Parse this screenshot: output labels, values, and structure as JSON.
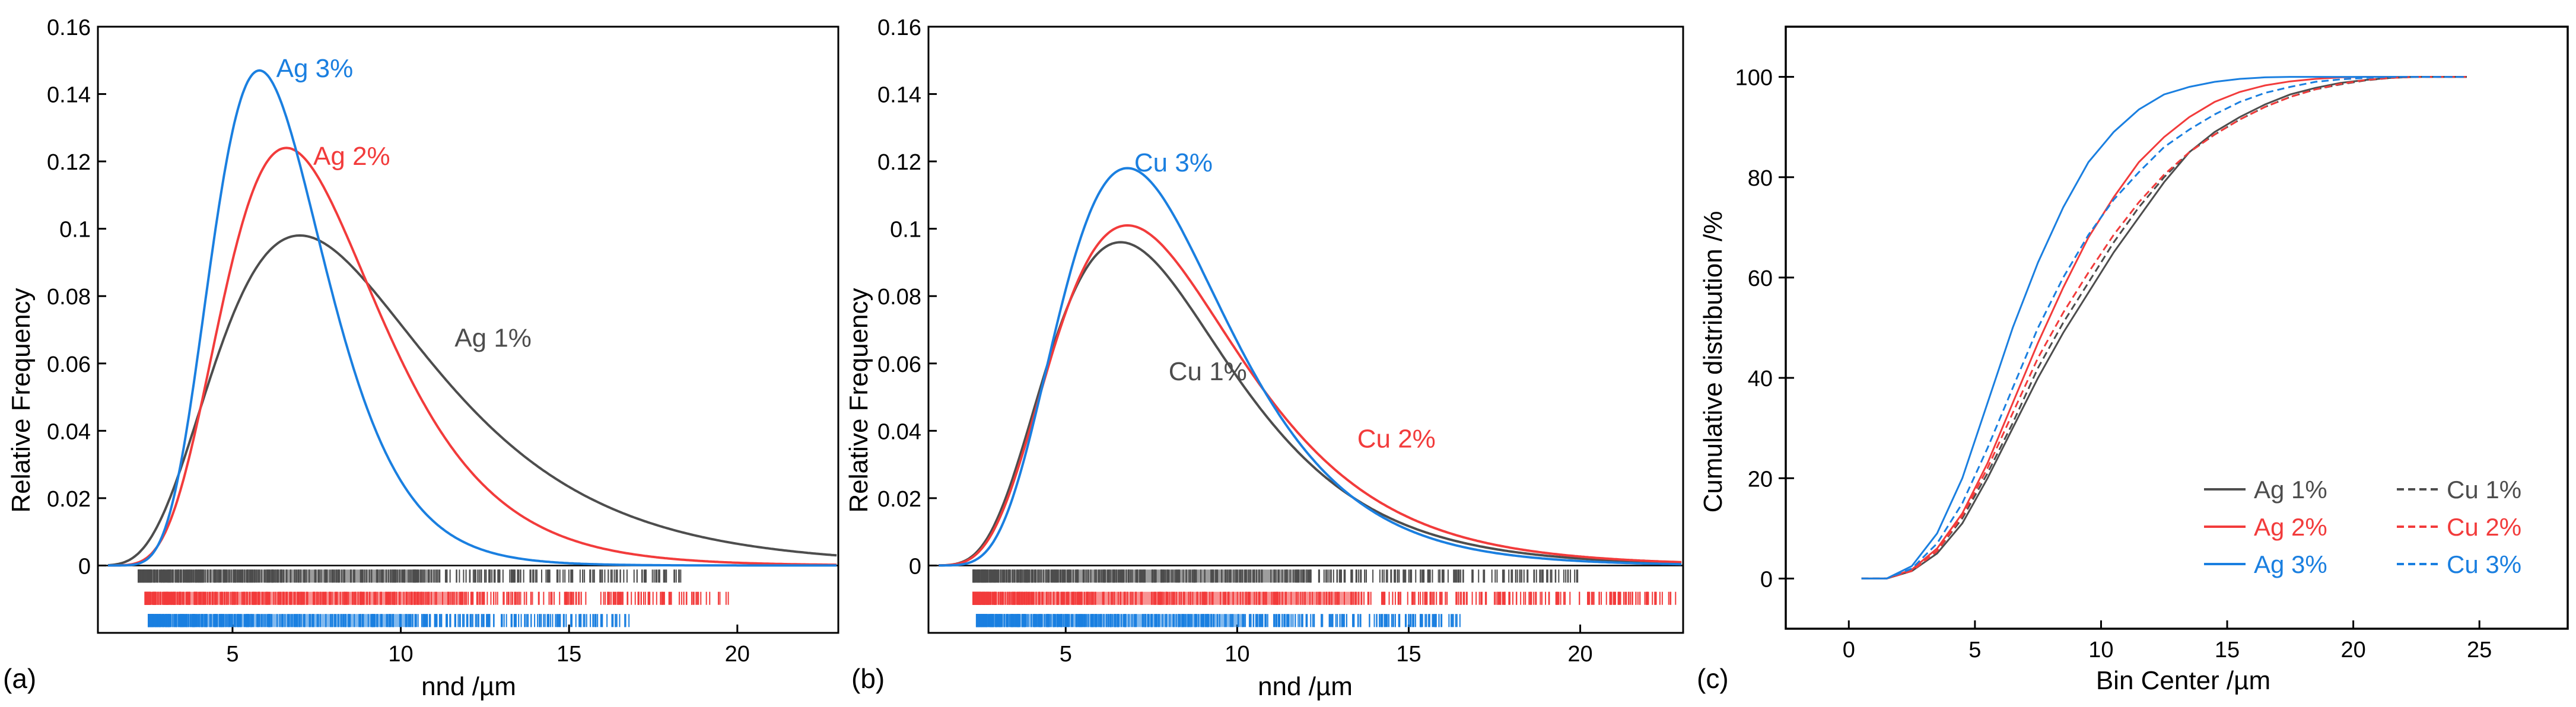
{
  "colors": {
    "black": "#4d4d4d",
    "red": "#f23b3b",
    "blue": "#1a7fe0",
    "axis": "#000000"
  },
  "chart_data": [
    {
      "type": "line",
      "panel_label": "(a)",
      "xlabel": "nnd /µm",
      "ylabel": "Relative Frequency",
      "xlim": [
        1,
        23
      ],
      "ylim": [
        -0.02,
        0.16
      ],
      "xticks": [
        5,
        10,
        15,
        20
      ],
      "xtick_labels": [
        "5",
        "10",
        "15",
        "20"
      ],
      "yticks": [
        0,
        0.02,
        0.04,
        0.06,
        0.08,
        0.1,
        0.12,
        0.14,
        0.16
      ],
      "ytick_labels": [
        "0",
        "0.02",
        "0.04",
        "0.06",
        "0.08",
        "0.1",
        "0.12",
        "0.14",
        "0.16"
      ],
      "series": [
        {
          "name": "Ag 1%",
          "color": "black",
          "mode": 7.0,
          "peak": 0.098,
          "sigma": 0.45,
          "label_at": [
            11.6,
            0.065
          ]
        },
        {
          "name": "Ag 2%",
          "color": "red",
          "mode": 6.6,
          "peak": 0.124,
          "sigma": 0.35,
          "label_at": [
            7.4,
            0.119
          ]
        },
        {
          "name": "Ag 3%",
          "color": "blue",
          "mode": 5.8,
          "peak": 0.147,
          "sigma": 0.29,
          "label_at": [
            6.3,
            0.145
          ]
        }
      ],
      "rug": [
        {
          "color": "black",
          "range": [
            2.2,
            18.4
          ],
          "level": 0
        },
        {
          "color": "red",
          "range": [
            2.4,
            19.8
          ],
          "level": 1
        },
        {
          "color": "blue",
          "range": [
            2.5,
            16.8
          ],
          "level": 2
        }
      ]
    },
    {
      "type": "line",
      "panel_label": "(b)",
      "xlabel": "nnd /µm",
      "ylabel": "Relative Frequency",
      "xlim": [
        1,
        23
      ],
      "ylim": [
        -0.02,
        0.16
      ],
      "xticks": [
        5,
        10,
        15,
        20
      ],
      "xtick_labels": [
        "5",
        "10",
        "15",
        "20"
      ],
      "yticks": [
        0,
        0.02,
        0.04,
        0.06,
        0.08,
        0.1,
        0.12,
        0.14,
        0.16
      ],
      "ytick_labels": [
        "0",
        "0.02",
        "0.04",
        "0.06",
        "0.08",
        "0.1",
        "0.12",
        "0.14",
        "0.16"
      ],
      "series": [
        {
          "name": "Cu 1%",
          "color": "black",
          "mode": 6.6,
          "peak": 0.096,
          "sigma": 0.4,
          "label_at": [
            8.0,
            0.055
          ]
        },
        {
          "name": "Cu 2%",
          "color": "red",
          "mode": 6.8,
          "peak": 0.101,
          "sigma": 0.4,
          "label_at": [
            13.5,
            0.035
          ]
        },
        {
          "name": "Cu 3%",
          "color": "blue",
          "mode": 6.8,
          "peak": 0.118,
          "sigma": 0.36,
          "label_at": [
            7.0,
            0.117
          ]
        }
      ],
      "rug": [
        {
          "color": "black",
          "range": [
            2.3,
            20.0
          ],
          "level": 0
        },
        {
          "color": "red",
          "range": [
            2.3,
            22.8
          ],
          "level": 1
        },
        {
          "color": "blue",
          "range": [
            2.4,
            16.5
          ],
          "level": 2
        }
      ]
    },
    {
      "type": "line",
      "panel_label": "(c)",
      "xlabel": "Bin Center /µm",
      "ylabel": "Cumulative distribution /%",
      "xlim": [
        -2.5,
        28.5
      ],
      "ylim": [
        -10,
        110
      ],
      "xticks": [
        0,
        5,
        10,
        15,
        20,
        25
      ],
      "xtick_labels": [
        "0",
        "5",
        "10",
        "15",
        "20",
        "25"
      ],
      "yticks": [
        0,
        20,
        40,
        60,
        80,
        100
      ],
      "ytick_labels": [
        "0",
        "20",
        "40",
        "60",
        "80",
        "100"
      ],
      "x": [
        0.5,
        1.5,
        2.5,
        3.5,
        4.5,
        5.5,
        6.5,
        7.5,
        8.5,
        9.5,
        10.5,
        11.5,
        12.5,
        13.5,
        14.5,
        15.5,
        16.5,
        17.5,
        18.5,
        19.5,
        20.5,
        21.5,
        22.5,
        23.5,
        24.5
      ],
      "series": [
        {
          "name": "Ag 1%",
          "color": "black",
          "dash": false,
          "values": [
            0,
            0,
            1.5,
            5,
            11,
            20,
            30,
            40,
            49,
            57,
            65,
            72,
            79,
            85,
            89,
            92,
            94.5,
            96.5,
            97.8,
            98.8,
            99.4,
            99.8,
            100,
            100,
            100
          ]
        },
        {
          "name": "Ag 2%",
          "color": "red",
          "dash": false,
          "values": [
            0,
            0,
            1.8,
            6,
            13,
            23,
            35,
            47,
            58,
            68,
            76,
            83,
            88,
            92,
            95,
            97,
            98.3,
            99.1,
            99.6,
            99.9,
            100,
            100,
            100,
            100,
            100
          ]
        },
        {
          "name": "Ag 3%",
          "color": "blue",
          "dash": false,
          "values": [
            0,
            0,
            2.5,
            9,
            20,
            35,
            50,
            63,
            74,
            83,
            89,
            93.5,
            96.5,
            98,
            99,
            99.6,
            99.9,
            100,
            100,
            100,
            100,
            100,
            100,
            100,
            100
          ]
        },
        {
          "name": "Cu 1%",
          "color": "black",
          "dash": true,
          "values": [
            0,
            0,
            1.5,
            5.5,
            12,
            21,
            31,
            42,
            51,
            59,
            67,
            74,
            80,
            85,
            88.5,
            91.5,
            94,
            96,
            97.5,
            98.5,
            99.3,
            99.8,
            100,
            100,
            100
          ]
        },
        {
          "name": "Cu 2%",
          "color": "red",
          "dash": true,
          "values": [
            0,
            0,
            1.5,
            5.5,
            12.5,
            22,
            33,
            44,
            53,
            61,
            68.5,
            75,
            80.5,
            85,
            88.5,
            91.5,
            94,
            96,
            97.5,
            98.6,
            99.4,
            99.8,
            100,
            100,
            100
          ]
        },
        {
          "name": "Cu 3%",
          "color": "blue",
          "dash": true,
          "values": [
            0,
            0,
            2,
            7,
            15,
            26,
            38,
            50,
            60,
            68.5,
            75.5,
            81,
            86,
            89.5,
            92.5,
            95,
            96.8,
            98,
            99,
            99.5,
            99.8,
            100,
            100,
            100,
            100
          ]
        }
      ],
      "legend": {
        "position": "bottom-right"
      }
    }
  ]
}
